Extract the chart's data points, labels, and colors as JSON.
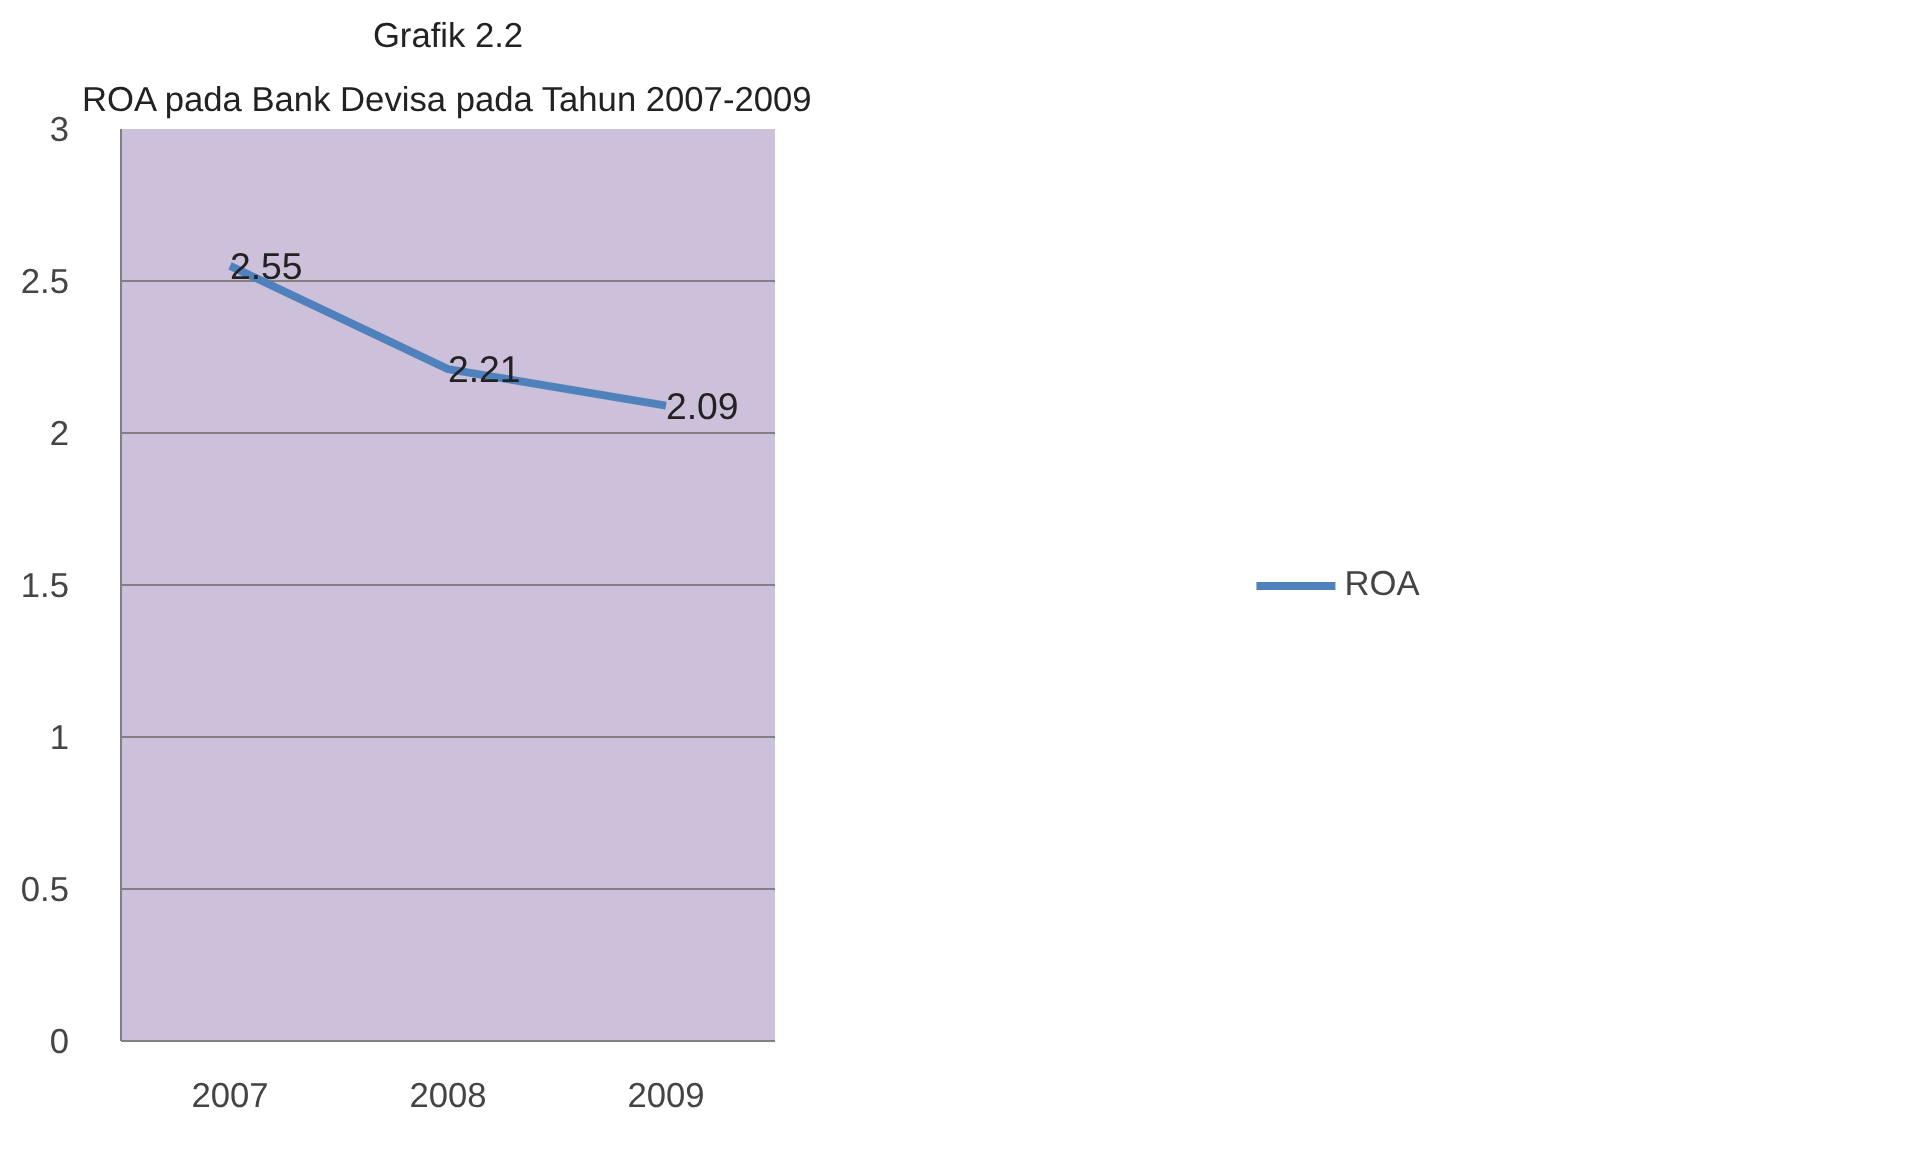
{
  "chart_data": {
    "type": "line",
    "title": "Grafik 2.2",
    "subtitle": "ROA pada Bank Devisa pada Tahun 2007-2009",
    "categories": [
      "2007",
      "2008",
      "2009"
    ],
    "series": [
      {
        "name": "ROA",
        "color": "#4f81bd",
        "values": [
          2.55,
          2.21,
          2.09
        ]
      }
    ],
    "ylim": [
      0,
      3
    ],
    "yticks": [
      0,
      0.5,
      1,
      1.5,
      2,
      2.5,
      3
    ],
    "grid": "y",
    "legend": "right",
    "data_labels": true,
    "marker": "none",
    "line_style": "solid"
  }
}
